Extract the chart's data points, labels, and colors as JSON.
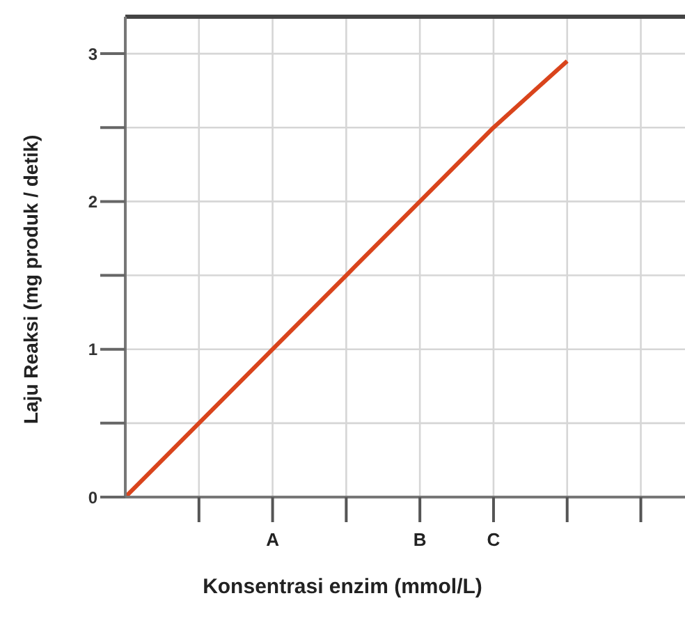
{
  "chart_data": {
    "type": "line",
    "xlabel": "Konsentrasi enzim (mmol/L)",
    "ylabel": "Laju Reaksi (mg produk / detik)",
    "categories": [
      null,
      null,
      "A",
      null,
      "B",
      "C",
      null,
      null
    ],
    "ylim": [
      0,
      3.25
    ],
    "yticks": [
      0,
      {
        "value": 0.5,
        "label": null
      },
      1,
      {
        "value": 1.5,
        "label": null
      },
      2,
      {
        "value": 2.5,
        "label": null
      },
      3
    ],
    "series": [
      {
        "color": "#d9441c",
        "values": [
          0,
          0.5,
          1,
          1.5,
          2,
          2.5,
          2.95,
          null
        ]
      }
    ],
    "grid": true,
    "marker": "none",
    "line_style": "solid"
  }
}
